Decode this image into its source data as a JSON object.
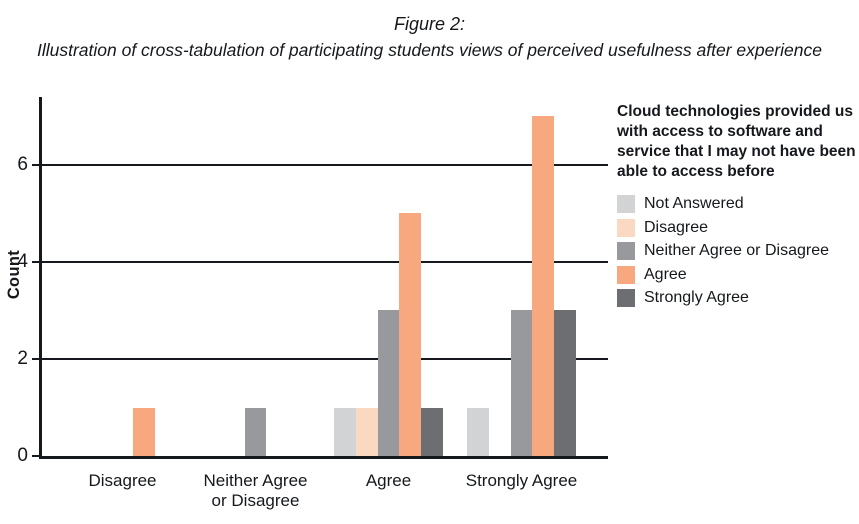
{
  "chart_data": {
    "type": "bar",
    "title": "Figure 2:",
    "subtitle": "Illustration of cross-tabulation of participating students views of perceived usefulness after experience",
    "ylabel": "Count",
    "xlabel": "",
    "categories": [
      "Disagree",
      "Neither Agree\nor Disagree",
      "Agree",
      "Strongly Agree"
    ],
    "series": [
      {
        "name": "Not Answered",
        "color": "#d2d3d5",
        "values": [
          0,
          0,
          1,
          1
        ]
      },
      {
        "name": "Disagree",
        "color": "#fad9c3",
        "values": [
          0,
          0,
          1,
          0
        ]
      },
      {
        "name": "Neither Agree or Disagree",
        "color": "#97999c",
        "values": [
          0,
          1,
          3,
          3
        ]
      },
      {
        "name": "Agree",
        "color": "#f7a87f",
        "values": [
          1,
          0,
          5,
          7
        ]
      },
      {
        "name": "Strongly Agree",
        "color": "#6c6e72",
        "values": [
          0,
          0,
          1,
          3
        ]
      }
    ],
    "yticks": [
      0,
      2,
      4,
      6
    ],
    "ylim": [
      0,
      7.4
    ],
    "grid": true,
    "legend_title": "Cloud technologies provided us with access to software and service that I may not have been able to access before",
    "legend_position": "right",
    "axis_color": "#15181c"
  }
}
